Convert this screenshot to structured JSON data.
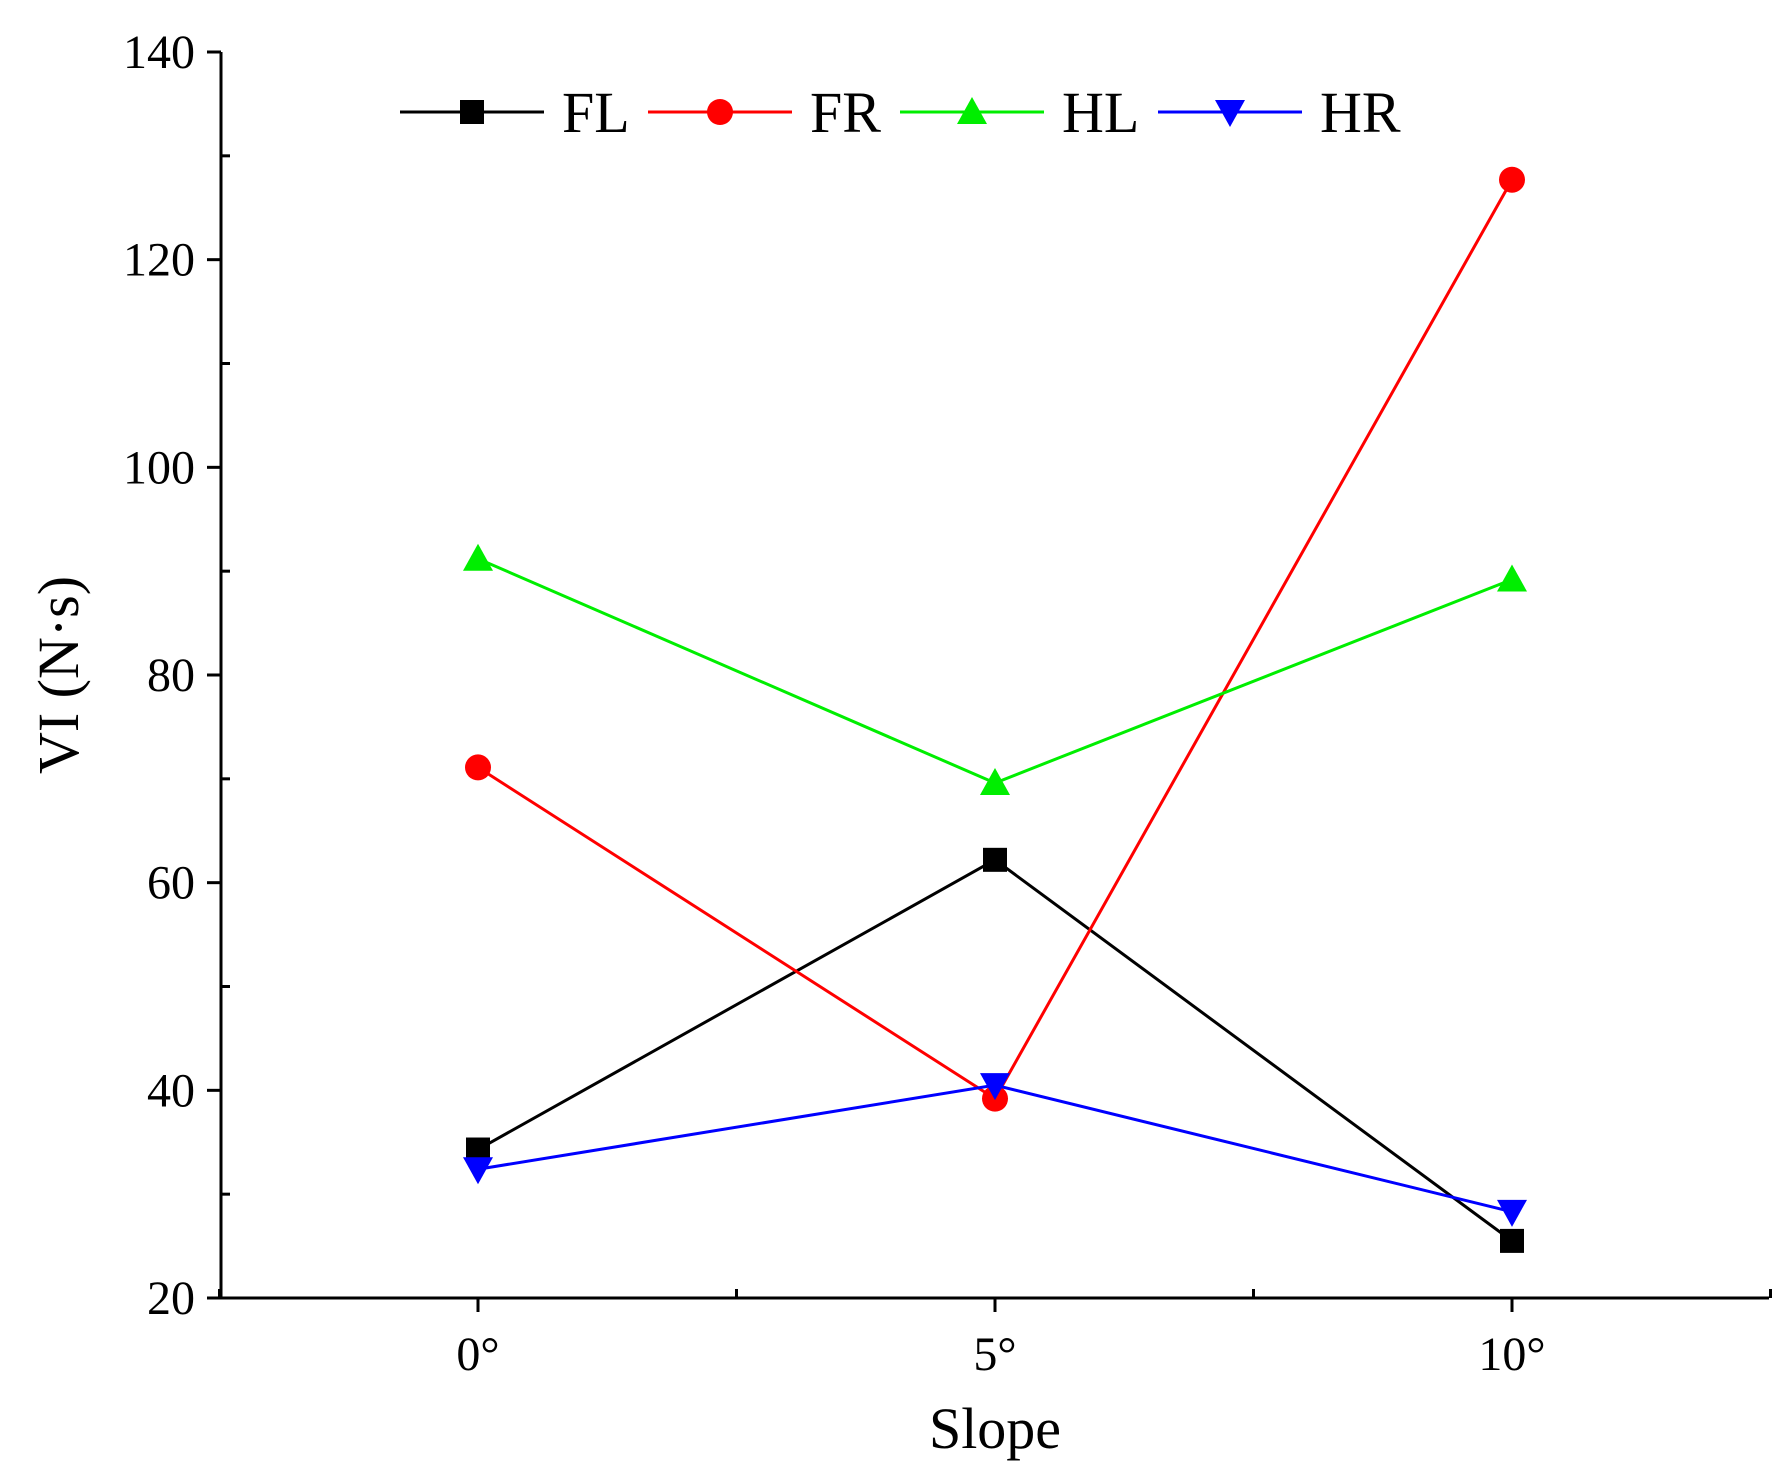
{
  "chart_data": {
    "type": "line",
    "title": "",
    "xlabel": "Slope",
    "ylabel": "VI (N·s)",
    "categories": [
      "0°",
      "5°",
      "10°"
    ],
    "ylim": [
      20,
      140
    ],
    "yticks": [
      "20",
      "40",
      "60",
      "80",
      "100",
      "120",
      "140"
    ],
    "grid": false,
    "legend_position": "top",
    "series": [
      {
        "name": "FL",
        "color": "#000000",
        "marker": "square",
        "values": [
          34.3,
          62.2,
          25.5
        ]
      },
      {
        "name": "FR",
        "color": "#ff0000",
        "marker": "circle",
        "values": [
          71.1,
          39.2,
          127.7
        ]
      },
      {
        "name": "HL",
        "color": "#00ee00",
        "marker": "triangle-up",
        "values": [
          91.2,
          69.6,
          89.2
        ]
      },
      {
        "name": "HR",
        "color": "#0000ff",
        "marker": "triangle-down",
        "values": [
          32.4,
          40.5,
          28.3
        ]
      }
    ]
  }
}
